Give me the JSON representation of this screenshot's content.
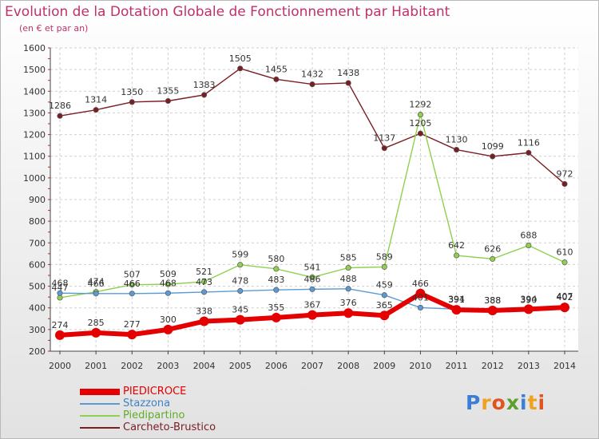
{
  "header": {
    "title": "Evolution de la Dotation Globale de Fonctionnement par Habitant",
    "subtitle": "(en € et par an)"
  },
  "logo": {
    "text": "Proxiti",
    "colors": [
      "#3a7fd5",
      "#f0a21c",
      "#e2541e",
      "#5aa02c"
    ]
  },
  "chart_data": {
    "type": "line",
    "x": [
      "2000",
      "2001",
      "2002",
      "2003",
      "2004",
      "2005",
      "2006",
      "2007",
      "2008",
      "2009",
      "2010",
      "2011",
      "2012",
      "2013",
      "2014"
    ],
    "ylim": [
      200,
      1600
    ],
    "yticks": [
      "200",
      "300",
      "400",
      "500",
      "600",
      "700",
      "800",
      "900",
      "1000",
      "1100",
      "1200",
      "1300",
      "1400",
      "1500",
      "1600"
    ],
    "grid": true,
    "legend_position": "bottom",
    "series": [
      {
        "name": "PIEDICROCE",
        "color": "#e40000",
        "values": [
          274,
          285,
          277,
          300,
          338,
          345,
          355,
          367,
          376,
          365,
          466,
          391,
          388,
          394,
          402
        ],
        "labels": [
          "274",
          "285",
          "277",
          "300",
          "338",
          "345",
          "355",
          "367",
          "376",
          "365",
          "466",
          "391",
          "388",
          "394",
          "402"
        ]
      },
      {
        "name": "Stazzona",
        "color": "#5b9bd5",
        "values": [
          468,
          466,
          466,
          468,
          473,
          478,
          483,
          486,
          488,
          459,
          401,
          394,
          388,
          390,
          407
        ],
        "labels": [
          "468",
          "466",
          "466",
          "468",
          "473",
          "478",
          "483",
          "486",
          "488",
          "459",
          "401",
          "394",
          "388",
          "390",
          "407"
        ]
      },
      {
        "name": "Piedipartino",
        "color": "#8fd04f",
        "values": [
          447,
          474,
          507,
          509,
          521,
          599,
          580,
          541,
          585,
          589,
          1292,
          642,
          626,
          688,
          610
        ],
        "labels": [
          "447",
          "474",
          "507",
          "509",
          "521",
          "599",
          "580",
          "541",
          "585",
          "589",
          "1292",
          "642",
          "626",
          "688",
          "610"
        ]
      },
      {
        "name": "Carcheto-Brustico",
        "color": "#7a1e24",
        "values": [
          1286,
          1314,
          1350,
          1355,
          1383,
          1505,
          1455,
          1432,
          1438,
          1137,
          1205,
          1130,
          1099,
          1116,
          972
        ],
        "labels": [
          "1286",
          "1314",
          "1350",
          "1355",
          "1383",
          "1505",
          "1455",
          "1432",
          "1438",
          "1137",
          "1205",
          "1130",
          "1099",
          "1116",
          "972"
        ]
      }
    ]
  }
}
